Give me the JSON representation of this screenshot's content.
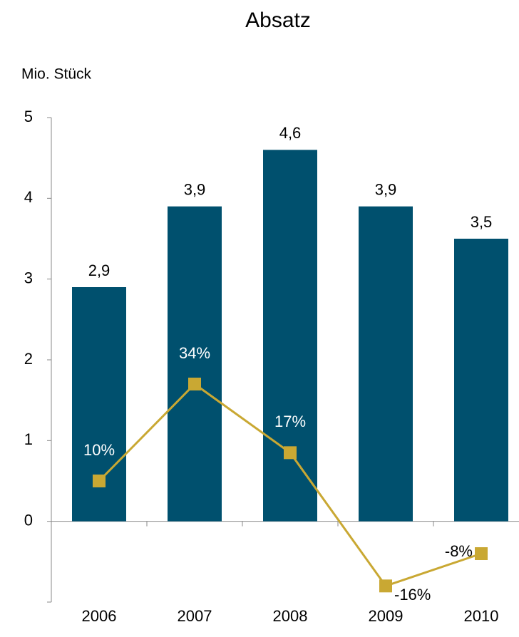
{
  "chart_data": {
    "type": "bar-line",
    "title": "Absatz",
    "y_axis_label": "Mio. Stück",
    "categories": [
      "2006",
      "2007",
      "2008",
      "2009",
      "2010"
    ],
    "series": [
      {
        "type": "bar",
        "color": "#00506e",
        "values": [
          2.9,
          3.9,
          4.6,
          3.9,
          3.5
        ],
        "value_labels": [
          "2,9",
          "3,9",
          "4,6",
          "3,9",
          "3,5"
        ]
      },
      {
        "type": "line",
        "axis": "y2",
        "color": "#c9a833",
        "values": [
          10,
          34,
          17,
          -16,
          -8
        ],
        "value_labels": [
          "10%",
          "34%",
          "17%",
          "-16%",
          "-8%"
        ]
      }
    ],
    "ylim": [
      -1,
      5
    ],
    "yticks": [
      0,
      1,
      2,
      3,
      4,
      5
    ],
    "y2lim": [
      -20,
      100
    ]
  }
}
